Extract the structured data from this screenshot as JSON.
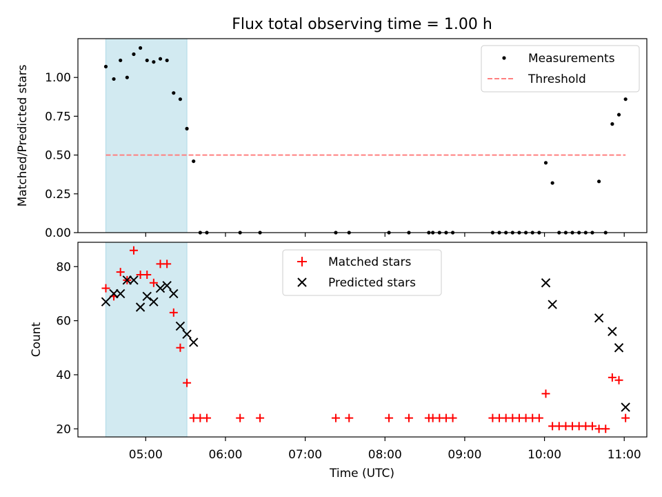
{
  "title": "Flux total observing time = 1.00 h",
  "colors": {
    "measure": "#000000",
    "threshold": "#ff7f7f",
    "matched": "#ff0000",
    "predicted": "#000000",
    "shade": "#add8e6"
  },
  "chart_data": [
    {
      "type": "scatter",
      "ylabel": "Matched/Predicted stars",
      "xlabel": "",
      "ylim": [
        0,
        1.25
      ],
      "yticks": [
        "0.00",
        "0.25",
        "0.50",
        "0.75",
        "1.00"
      ],
      "shaded_interval": [
        "04:30",
        "05:31"
      ],
      "legend": {
        "position": "upper right",
        "entries": [
          "Measurements",
          "Threshold"
        ]
      },
      "threshold": {
        "y": 0.5,
        "x": [
          "04:30",
          "11:01"
        ]
      },
      "series": [
        {
          "name": "Measurements",
          "marker": "dot",
          "x": [
            "04:30",
            "04:36",
            "04:41",
            "04:46",
            "04:51",
            "04:56",
            "05:01",
            "05:06",
            "05:11",
            "05:16",
            "05:21",
            "05:26",
            "05:31",
            "05:36",
            "05:41",
            "05:46",
            "06:11",
            "06:26",
            "07:23",
            "07:33",
            "08:03",
            "08:18",
            "08:33",
            "08:36",
            "08:41",
            "08:46",
            "08:51",
            "09:21",
            "09:26",
            "09:31",
            "09:36",
            "09:41",
            "09:46",
            "09:51",
            "09:56",
            "10:01",
            "10:06",
            "10:11",
            "10:16",
            "10:21",
            "10:26",
            "10:31",
            "10:36",
            "10:41",
            "10:46",
            "10:51",
            "10:56",
            "11:01"
          ],
          "y": [
            1.07,
            0.99,
            1.11,
            1.0,
            1.15,
            1.19,
            1.11,
            1.1,
            1.12,
            1.11,
            0.9,
            0.86,
            0.67,
            0.46,
            0.0,
            0.0,
            0.0,
            0.0,
            0.0,
            0.0,
            0.0,
            0.0,
            0.0,
            0.0,
            0.0,
            0.0,
            0.0,
            0.0,
            0.0,
            0.0,
            0.0,
            0.0,
            0.0,
            0.0,
            0.0,
            0.45,
            0.32,
            0.0,
            0.0,
            0.0,
            0.0,
            0.0,
            0.0,
            0.33,
            0.0,
            0.7,
            0.76,
            0.86
          ]
        }
      ]
    },
    {
      "type": "scatter",
      "ylabel": "Count",
      "xlabel": "Time (UTC)",
      "ylim": [
        17,
        89
      ],
      "yticks": [
        "20",
        "40",
        "60",
        "80"
      ],
      "xticks": [
        "05:00",
        "06:00",
        "07:00",
        "08:00",
        "09:00",
        "10:00",
        "11:00"
      ],
      "shaded_interval": [
        "04:30",
        "05:31"
      ],
      "legend": {
        "position": "upper center",
        "entries": [
          "Matched stars",
          "Predicted stars"
        ]
      },
      "series": [
        {
          "name": "Matched stars",
          "marker": "plus",
          "x": [
            "04:30",
            "04:36",
            "04:41",
            "04:46",
            "04:51",
            "04:56",
            "05:01",
            "05:06",
            "05:11",
            "05:16",
            "05:21",
            "05:26",
            "05:31",
            "05:36",
            "05:41",
            "05:46",
            "06:11",
            "06:26",
            "07:23",
            "07:33",
            "08:03",
            "08:18",
            "08:33",
            "08:36",
            "08:41",
            "08:46",
            "08:51",
            "09:21",
            "09:26",
            "09:31",
            "09:36",
            "09:41",
            "09:46",
            "09:51",
            "09:56",
            "10:01",
            "10:06",
            "10:11",
            "10:16",
            "10:21",
            "10:26",
            "10:31",
            "10:36",
            "10:41",
            "10:46",
            "10:51",
            "10:56",
            "11:01"
          ],
          "y": [
            72,
            69,
            78,
            75,
            86,
            77,
            77,
            74,
            81,
            81,
            63,
            50,
            37,
            24,
            24,
            24,
            24,
            24,
            24,
            24,
            24,
            24,
            24,
            24,
            24,
            24,
            24,
            24,
            24,
            24,
            24,
            24,
            24,
            24,
            24,
            33,
            21,
            21,
            21,
            21,
            21,
            21,
            21,
            20,
            20,
            39,
            38,
            24
          ]
        },
        {
          "name": "Predicted stars",
          "marker": "x",
          "x": [
            "04:30",
            "04:36",
            "04:41",
            "04:46",
            "04:51",
            "04:56",
            "05:01",
            "05:06",
            "05:11",
            "05:16",
            "05:21",
            "05:26",
            "05:31",
            "05:36",
            "10:01",
            "10:06",
            "10:41",
            "10:51",
            "10:56",
            "11:01"
          ],
          "y": [
            67,
            70,
            70,
            75,
            75,
            65,
            69,
            67,
            72,
            73,
            70,
            58,
            55,
            52,
            74,
            66,
            61,
            56,
            50,
            28
          ]
        }
      ]
    }
  ]
}
